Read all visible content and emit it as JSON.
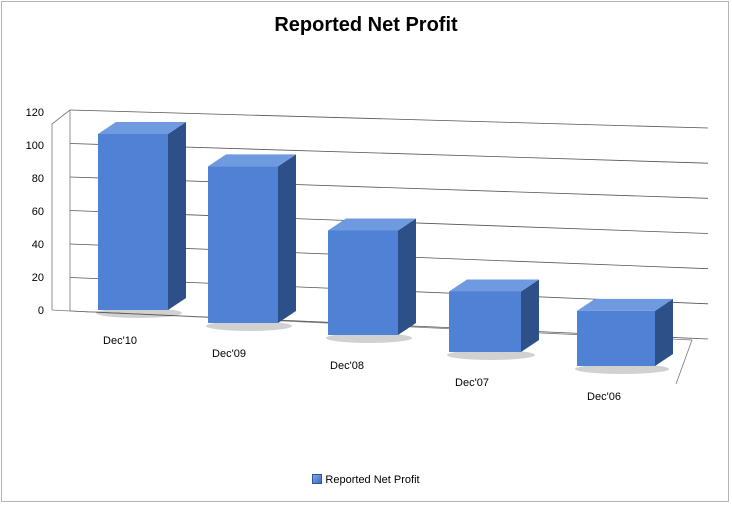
{
  "chart_data": {
    "type": "bar",
    "title": "Reported Net Profit",
    "categories": [
      "Dec'10",
      "Dec'09",
      "Dec'08",
      "Dec'07",
      "Dec'06"
    ],
    "series": [
      {
        "name": "Reported Net Profit",
        "values": [
          110,
          102,
          71,
          43,
          41
        ]
      }
    ],
    "ylim": [
      0,
      120
    ],
    "yticks": [
      0,
      20,
      40,
      60,
      80,
      100,
      120
    ],
    "grid": true,
    "legend": "bottom",
    "style": "3d-column",
    "colors": {
      "bar_front": "#4f81d4",
      "bar_side": "#2d5088",
      "bar_top": "#6f9ae0",
      "grid": "#555555"
    }
  }
}
